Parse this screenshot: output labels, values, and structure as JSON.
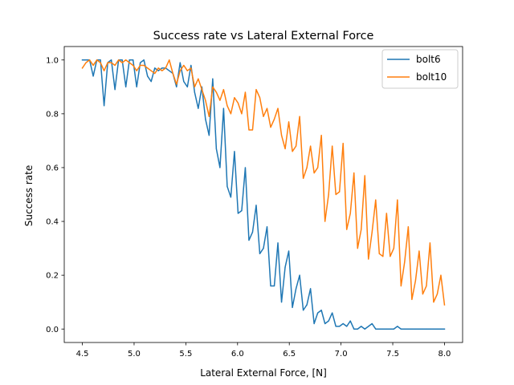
{
  "chart_data": {
    "type": "line",
    "title": "Success rate vs Lateral External Force",
    "xlabel": "Lateral External Force, [N]",
    "ylabel": "Success rate",
    "xlim": [
      4.325,
      8.175
    ],
    "ylim": [
      -0.05,
      1.05
    ],
    "xticks": [
      4.5,
      5.0,
      5.5,
      6.0,
      6.5,
      7.0,
      7.5,
      8.0
    ],
    "xtick_labels": [
      "4.5",
      "5.0",
      "5.5",
      "6.0",
      "6.5",
      "7.0",
      "7.5",
      "8.0"
    ],
    "yticks": [
      0.0,
      0.2,
      0.4,
      0.6,
      0.8,
      1.0
    ],
    "ytick_labels": [
      "0.0",
      "0.2",
      "0.4",
      "0.6",
      "0.8",
      "1.0"
    ],
    "grid": false,
    "legend": "top-right",
    "x": [
      4.5,
      4.535,
      4.57,
      4.605,
      4.64,
      4.675,
      4.71,
      4.745,
      4.78,
      4.815,
      4.85,
      4.885,
      4.92,
      4.955,
      4.99,
      5.025,
      5.06,
      5.095,
      5.13,
      5.165,
      5.2,
      5.235,
      5.27,
      5.305,
      5.34,
      5.375,
      5.41,
      5.445,
      5.48,
      5.515,
      5.55,
      5.585,
      5.62,
      5.655,
      5.69,
      5.725,
      5.76,
      5.795,
      5.83,
      5.865,
      5.9,
      5.935,
      5.97,
      6.005,
      6.04,
      6.075,
      6.11,
      6.145,
      6.18,
      6.215,
      6.25,
      6.285,
      6.32,
      6.355,
      6.39,
      6.425,
      6.46,
      6.495,
      6.53,
      6.565,
      6.6,
      6.635,
      6.67,
      6.705,
      6.74,
      6.775,
      6.81,
      6.845,
      6.88,
      6.915,
      6.95,
      6.985,
      7.02,
      7.055,
      7.09,
      7.125,
      7.16,
      7.195,
      7.23,
      7.265,
      7.3,
      7.335,
      7.37,
      7.405,
      7.44,
      7.475,
      7.51,
      7.545,
      7.58,
      7.615,
      7.65,
      7.685,
      7.72,
      7.755,
      7.79,
      7.825,
      7.86,
      7.895,
      7.93,
      7.965,
      8.0
    ],
    "series": [
      {
        "name": "bolt6",
        "color": "#1f77b4",
        "values": [
          1.0,
          1.0,
          1.0,
          0.94,
          1.0,
          1.0,
          0.83,
          0.99,
          1.0,
          0.89,
          1.0,
          1.0,
          0.9,
          1.0,
          1.0,
          0.9,
          0.99,
          1.0,
          0.94,
          0.92,
          0.97,
          0.96,
          0.97,
          0.97,
          0.96,
          0.95,
          0.9,
          0.99,
          0.92,
          0.9,
          0.98,
          0.88,
          0.82,
          0.9,
          0.78,
          0.72,
          0.93,
          0.67,
          0.6,
          0.82,
          0.53,
          0.49,
          0.66,
          0.43,
          0.44,
          0.6,
          0.33,
          0.36,
          0.46,
          0.28,
          0.3,
          0.38,
          0.16,
          0.16,
          0.32,
          0.1,
          0.23,
          0.29,
          0.08,
          0.15,
          0.2,
          0.07,
          0.09,
          0.15,
          0.02,
          0.06,
          0.07,
          0.02,
          0.03,
          0.06,
          0.01,
          0.01,
          0.02,
          0.01,
          0.03,
          0.0,
          0.0,
          0.01,
          0.0,
          0.01,
          0.02,
          0.0,
          0.0,
          0.0,
          0.0,
          0.0,
          0.0,
          0.01,
          0.0,
          0.0,
          0.0,
          0.0,
          0.0,
          0.0,
          0.0,
          0.0,
          0.0,
          0.0,
          0.0,
          0.0,
          0.0
        ]
      },
      {
        "name": "bolt10",
        "color": "#ff7f0e",
        "values": [
          0.97,
          0.99,
          1.0,
          0.98,
          1.0,
          0.99,
          0.96,
          0.99,
          0.99,
          0.98,
          1.0,
          0.99,
          1.0,
          0.99,
          0.98,
          0.96,
          0.98,
          0.98,
          0.97,
          0.96,
          0.95,
          0.97,
          0.96,
          0.97,
          1.0,
          0.95,
          0.91,
          0.96,
          0.98,
          0.96,
          0.97,
          0.9,
          0.93,
          0.89,
          0.85,
          0.79,
          0.9,
          0.88,
          0.85,
          0.89,
          0.83,
          0.8,
          0.86,
          0.84,
          0.8,
          0.88,
          0.74,
          0.74,
          0.89,
          0.86,
          0.79,
          0.82,
          0.75,
          0.78,
          0.82,
          0.72,
          0.67,
          0.77,
          0.66,
          0.68,
          0.79,
          0.56,
          0.6,
          0.68,
          0.58,
          0.6,
          0.72,
          0.4,
          0.5,
          0.68,
          0.5,
          0.51,
          0.69,
          0.37,
          0.43,
          0.58,
          0.3,
          0.37,
          0.57,
          0.26,
          0.36,
          0.48,
          0.28,
          0.27,
          0.43,
          0.27,
          0.3,
          0.48,
          0.16,
          0.25,
          0.38,
          0.11,
          0.18,
          0.29,
          0.13,
          0.16,
          0.32,
          0.1,
          0.13,
          0.2,
          0.09
        ]
      }
    ]
  }
}
